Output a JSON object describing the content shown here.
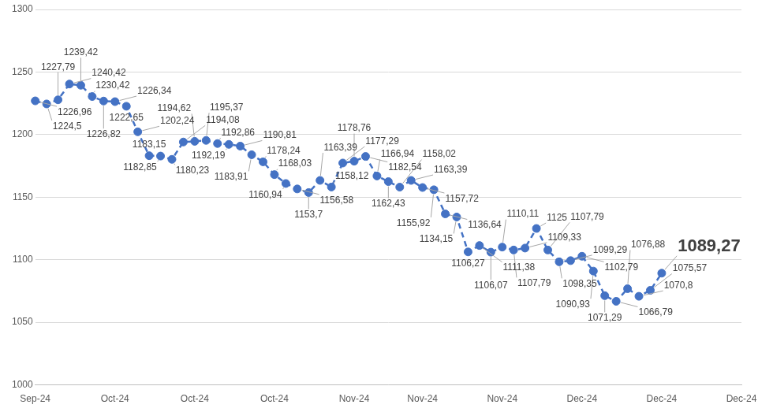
{
  "chart_data": {
    "type": "line",
    "categories": [
      "Sep-24",
      null,
      null,
      null,
      null,
      null,
      null,
      "Oct-24",
      null,
      null,
      null,
      null,
      null,
      null,
      "Oct-24",
      null,
      null,
      null,
      null,
      null,
      null,
      "Oct-24",
      null,
      null,
      null,
      null,
      null,
      null,
      "Nov-24",
      null,
      null,
      null,
      null,
      null,
      "Nov-24",
      null,
      null,
      null,
      null,
      null,
      null,
      "Nov-24",
      null,
      null,
      null,
      null,
      null,
      null,
      "Dec-24",
      null,
      null,
      null,
      null,
      null,
      null,
      "Dec-24",
      null,
      null,
      null,
      null,
      null,
      null,
      "Dec-24"
    ],
    "values": [
      1226.96,
      1224.5,
      1227.79,
      1240.42,
      1239.42,
      1230.42,
      1226.82,
      1226.34,
      1222.65,
      1202.24,
      1183.15,
      1182.85,
      1180.23,
      1194.08,
      1194.62,
      1195.37,
      1192.86,
      1192.19,
      1190.81,
      1183.91,
      1178.24,
      1168.03,
      1160.94,
      1156.58,
      1153.7,
      1163.39,
      1158.12,
      1177.29,
      1178.76,
      1182.54,
      1166.94,
      1162.43,
      1158.02,
      1163.39,
      1157.72,
      1155.92,
      1136.64,
      1134.15,
      1106.27,
      1111.38,
      1106.07,
      1110.11,
      1107.79,
      1109.33,
      1125,
      1107.79,
      1098.35,
      1099.29,
      1102.79,
      1090.93,
      1071.29,
      1066.79,
      1076.88,
      1070.8,
      1075.57,
      1089.27,
      null,
      null,
      null,
      null,
      null,
      null,
      null
    ],
    "value_labels": [
      "1226,96",
      "1224,5",
      "1227,79",
      "1240,42",
      "1239,42",
      "1230,42",
      "1226,82",
      "1226,34",
      "1222,65",
      "1202,24",
      "1183,15",
      "1182,85",
      "1180,23",
      "1194,08",
      "1194,62",
      "1195,37",
      "1192,86",
      "1192,19",
      "1190,81",
      "1183,91",
      "1178,24",
      "1168,03",
      "1160,94",
      "1156,58",
      "1153,7",
      "1163,39",
      "1158,12",
      "1177,29",
      "1178,76",
      "1182,54",
      "1166,94",
      "1162,43",
      "1158,02",
      "1163,39",
      "1157,72",
      "1155,92",
      "1136,64",
      "1134,15",
      "1106,27",
      "1111,38",
      "1106,07",
      "1110,11",
      "1107,79",
      "1109,33",
      "1125",
      "1107,79",
      "1098,35",
      "1099,29",
      "1102,79",
      "1090,93",
      "1071,29",
      "1066,79",
      "1076,88",
      "1070,8",
      "1075,57",
      "1089,27",
      null,
      null,
      null,
      null,
      null,
      null,
      null
    ],
    "color": "#4472c4",
    "marker": "circle",
    "line_style": "dashed",
    "ylim": [
      1000,
      1300
    ],
    "yticks": [
      1000,
      1050,
      1100,
      1150,
      1200,
      1250,
      1300
    ],
    "grid": true,
    "data_labels": true
  }
}
